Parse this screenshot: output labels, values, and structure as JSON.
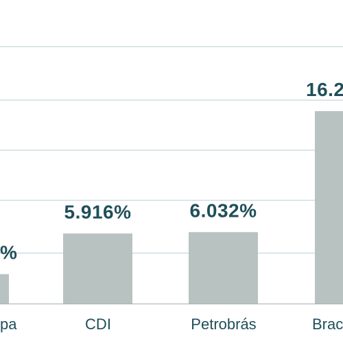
{
  "chart_data": {
    "type": "bar",
    "categories": [
      "...pa",
      "CDI",
      "Petrobrás",
      "Brac..."
    ],
    "category_labels": [
      "pa",
      "CDI",
      "Petrobrás",
      "Brac"
    ],
    "values": [
      2.5,
      5.916,
      6.032,
      16.2
    ],
    "value_labels": [
      "%",
      "5.916%",
      "6.032%",
      "16.2"
    ],
    "title": "",
    "xlabel": "",
    "ylabel": "",
    "grid": true,
    "legend": "none"
  },
  "colors": {
    "bar": "#b8c2c1",
    "label": "#1f4f5a",
    "category_text": "#1f4f5a",
    "grid": "#b7cdd0",
    "axis": "#9aa9aa"
  }
}
